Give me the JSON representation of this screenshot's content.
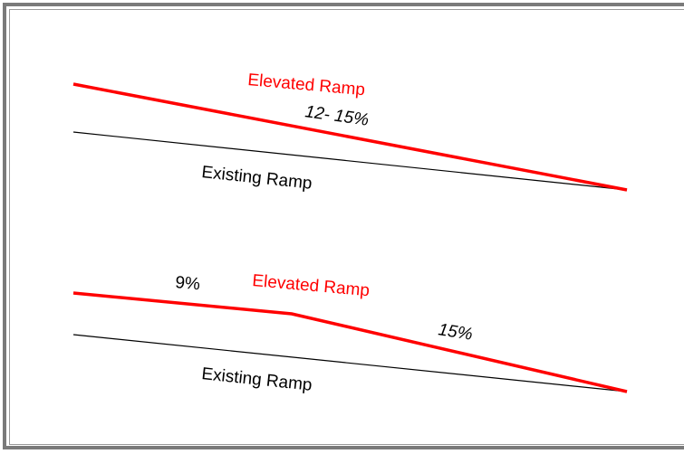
{
  "colors": {
    "elevated": "#ff0000",
    "existing": "#000000",
    "border": "#7a7a7a"
  },
  "top_diagram": {
    "elevated_label": "Elevated Ramp",
    "slope_label": "12- 15%",
    "existing_label": "Existing Ramp"
  },
  "bottom_diagram": {
    "first_slope_label": "9%",
    "elevated_label": "Elevated Ramp",
    "second_slope_label": "15%",
    "existing_label": "Existing Ramp"
  }
}
